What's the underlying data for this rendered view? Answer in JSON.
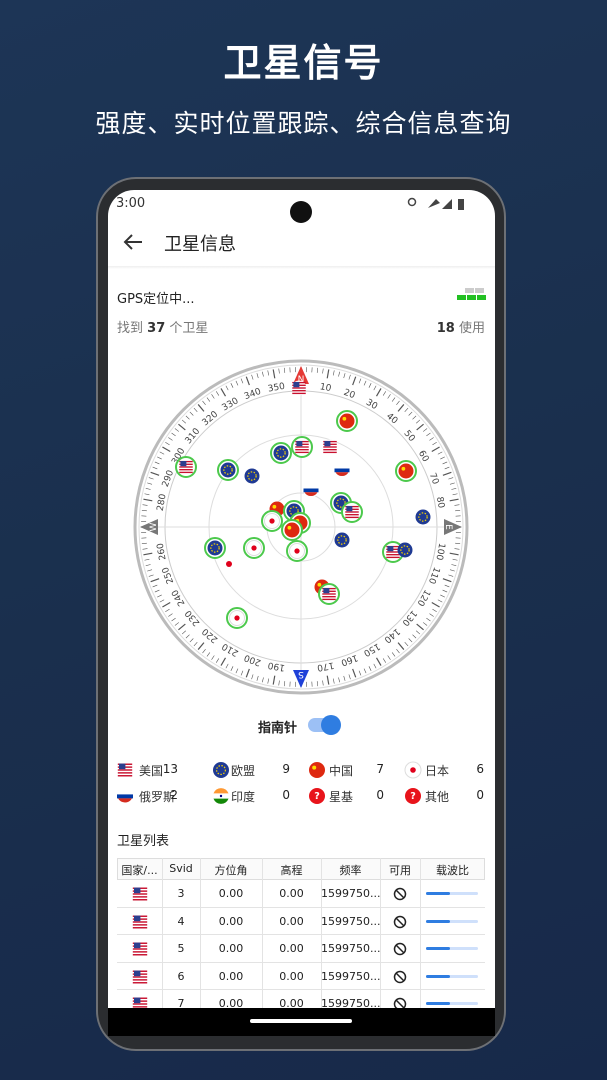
{
  "header": {
    "title": "卫星信号",
    "subtitle": "强度、实时位置跟踪、综合信息查询"
  },
  "status_bar": {
    "time": "3:00"
  },
  "app_bar": {
    "title": "卫星信息"
  },
  "summary": {
    "status": "GPS定位中...",
    "found_prefix": "找到",
    "found_count": 37,
    "found_suffix": "个卫星",
    "used_count": 18,
    "used_suffix": "使用"
  },
  "compass": {
    "cardinals": [
      "N",
      "E",
      "S",
      "W"
    ],
    "degree_labels": [
      10,
      20,
      30,
      40,
      50,
      60,
      70,
      80,
      100,
      110,
      120,
      130,
      140,
      150,
      160,
      170,
      190,
      200,
      210,
      220,
      230,
      240,
      250,
      260,
      280,
      290,
      300,
      310,
      320,
      330,
      340,
      350
    ],
    "toggle_label": "指南针"
  },
  "countries": [
    {
      "name": "美国",
      "count": 13
    },
    {
      "name": "欧盟",
      "count": 9
    },
    {
      "name": "中国",
      "count": 7
    },
    {
      "name": "日本",
      "count": 6
    },
    {
      "name": "俄罗斯",
      "count": 2
    },
    {
      "name": "印度",
      "count": 0
    },
    {
      "name": "星基",
      "count": 0
    },
    {
      "name": "其他",
      "count": 0
    }
  ],
  "table": {
    "title": "卫星列表",
    "columns": [
      "国家/...",
      "Svid",
      "方位角",
      "高程",
      "频率",
      "可用",
      "载波比"
    ],
    "rows": [
      [
        3,
        "0.00",
        "0.00",
        "1599750..."
      ],
      [
        4,
        "0.00",
        "0.00",
        "1599750..."
      ],
      [
        5,
        "0.00",
        "0.00",
        "1599750..."
      ],
      [
        6,
        "0.00",
        "0.00",
        "1599750..."
      ],
      [
        7,
        "0.00",
        "0.00",
        "1599750..."
      ]
    ]
  }
}
